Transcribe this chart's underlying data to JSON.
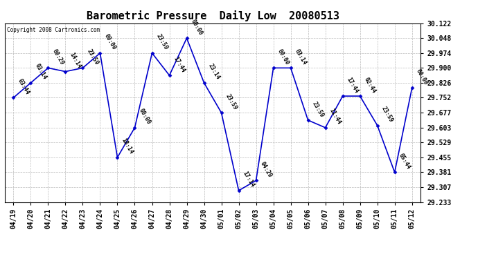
{
  "title": "Barometric Pressure  Daily Low  20080513",
  "copyright": "Copyright 2008 Cartronics.com",
  "x_labels": [
    "04/19",
    "04/20",
    "04/21",
    "04/22",
    "04/23",
    "04/24",
    "04/25",
    "04/26",
    "04/27",
    "04/28",
    "04/29",
    "04/30",
    "05/01",
    "05/02",
    "05/03",
    "05/04",
    "05/05",
    "05/06",
    "05/07",
    "05/08",
    "05/09",
    "05/10",
    "05/11",
    "05/12"
  ],
  "y_values": [
    29.752,
    29.826,
    29.9,
    29.882,
    29.9,
    29.974,
    29.455,
    29.603,
    29.974,
    29.863,
    30.048,
    29.826,
    29.677,
    29.29,
    29.34,
    29.9,
    29.9,
    29.64,
    29.603,
    29.76,
    29.76,
    29.614,
    29.381,
    29.8
  ],
  "point_labels": [
    "03:44",
    "03:14",
    "00:29",
    "14:14",
    "23:59",
    "00:00",
    "18:14",
    "00:00",
    "23:59",
    "17:44",
    "00:00",
    "23:14",
    "23:59",
    "17:14",
    "04:29",
    "00:00",
    "03:14",
    "23:59",
    "11:44",
    "17:44",
    "02:44",
    "23:59",
    "05:44",
    "00:00"
  ],
  "ylim_min": 29.233,
  "ylim_max": 30.122,
  "yticks": [
    29.233,
    29.307,
    29.381,
    29.455,
    29.529,
    29.603,
    29.677,
    29.752,
    29.826,
    29.9,
    29.974,
    30.048,
    30.122
  ],
  "line_color": "#0000CC",
  "marker_color": "#0000CC",
  "bg_color": "#FFFFFF",
  "plot_bg_color": "#FFFFFF",
  "grid_color": "#BBBBBB",
  "title_fontsize": 11,
  "tick_fontsize": 7,
  "label_fontsize": 6,
  "copyright_fontsize": 5.5
}
